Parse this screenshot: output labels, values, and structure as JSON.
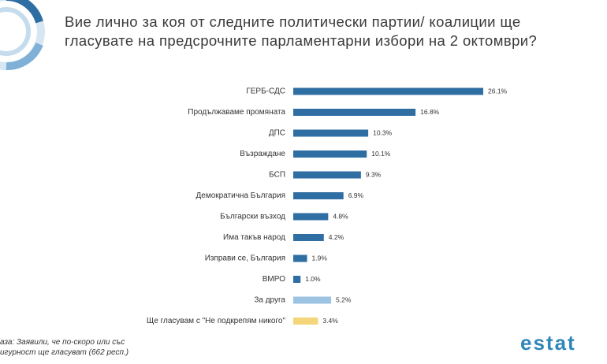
{
  "chart_data": {
    "type": "bar",
    "orientation": "horizontal",
    "title": "Вие лично за коя от следните политически партии/ коалиции ще гласувате на предсрочните парламентарни избори на 2 октомври?",
    "categories": [
      "ГЕРБ-СДС",
      "Продължаваме промяната",
      "ДПС",
      "Възраждане",
      "БСП",
      "Демократична България",
      "Български възход",
      "Има такъв народ",
      "Изправи се, България",
      "ВМРО",
      "За друга",
      "Ще гласувам с \"Не подкрепям никого\""
    ],
    "values": [
      26.1,
      16.8,
      10.3,
      10.1,
      9.3,
      6.9,
      4.8,
      4.2,
      1.9,
      1.0,
      5.2,
      3.4
    ],
    "value_labels": [
      "26.1%",
      "16.8%",
      "10.3%",
      "10.1%",
      "9.3%",
      "6.9%",
      "4.8%",
      "4.2%",
      "1.9%",
      "1.0%",
      "5.2%",
      "3.4%"
    ],
    "colors": [
      "#2f6ea3",
      "#2f6ea3",
      "#2f6ea3",
      "#2f6ea3",
      "#2f6ea3",
      "#2f6ea3",
      "#2f6ea3",
      "#2f6ea3",
      "#2f6ea3",
      "#2f6ea3",
      "#9cc4e2",
      "#f5d57a"
    ],
    "footnote": [
      "аза: Заявили, че по-скоро или със",
      "игурност ще гласуват (662 респ.)"
    ],
    "logo": "estat"
  }
}
